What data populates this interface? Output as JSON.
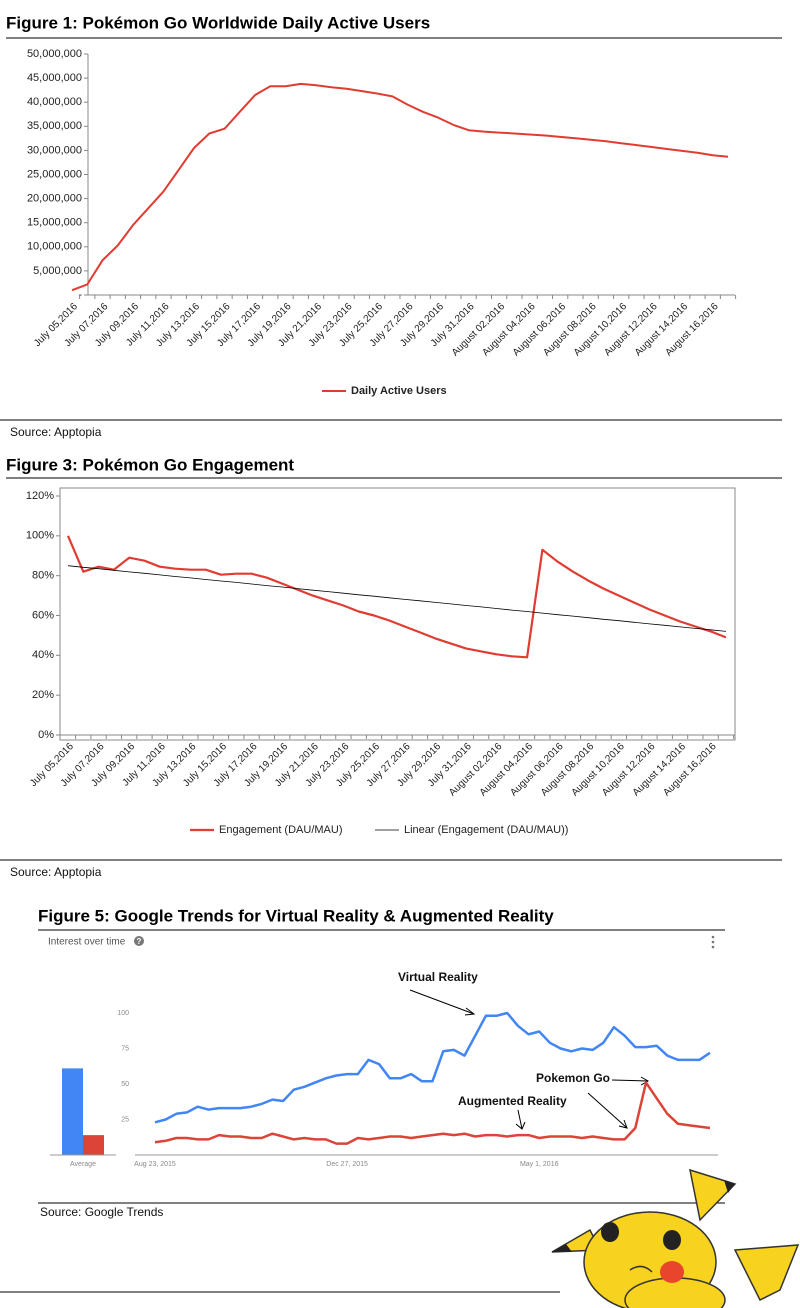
{
  "chart_data": [
    {
      "type": "line",
      "title": "Figure 1: Pokémon Go Worldwide Daily Active Users",
      "categories": [
        "July 05,2016",
        null,
        "July 07,2016",
        null,
        "July 09,2016",
        null,
        "July 11,2016",
        null,
        "July 13,2016",
        null,
        "July 15,2016",
        null,
        "July 17,2016",
        null,
        "July 19,2016",
        null,
        "July 21,2016",
        null,
        "July 23,2016",
        null,
        "July 25,2016",
        null,
        "July 27,2016",
        null,
        "July 29,2016",
        null,
        "July 31,2016",
        null,
        "August 02,2016",
        null,
        "August 04,2016",
        null,
        "August 06,2016",
        null,
        "August 08,2016",
        null,
        "August 10,2016",
        null,
        "August 12,2016",
        null,
        "August 14,2016",
        null,
        "August 16,2016",
        null
      ],
      "series": [
        {
          "name": "Daily Active Users",
          "color": "#e03c31",
          "values": [
            1000000,
            2200000,
            7200000,
            10300000,
            14500000,
            18000000,
            21500000,
            26000000,
            30500000,
            33500000,
            34500000,
            38000000,
            41500000,
            43300000,
            43300000,
            43800000,
            43500000,
            43100000,
            42800000,
            42300000,
            41800000,
            41200000,
            39500000,
            38000000,
            36800000,
            35300000,
            34200000,
            33900000,
            33700000,
            33500000,
            33300000,
            33100000,
            32800000,
            32500000,
            32200000,
            31900000,
            31500000,
            31100000,
            30700000,
            30300000,
            29900000,
            29500000,
            29000000,
            28700000
          ]
        }
      ],
      "ylim": [
        0,
        50000000
      ],
      "yticks": [
        {
          "value": 0,
          "label": "-"
        },
        {
          "value": 5000000,
          "label": "5,000,000"
        },
        {
          "value": 10000000,
          "label": "10,000,000"
        },
        {
          "value": 15000000,
          "label": "15,000,000"
        },
        {
          "value": 20000000,
          "label": "20,000,000"
        },
        {
          "value": 25000000,
          "label": "25,000,000"
        },
        {
          "value": 30000000,
          "label": "30,000,000"
        },
        {
          "value": 35000000,
          "label": "35,000,000"
        },
        {
          "value": 40000000,
          "label": "40,000,000"
        },
        {
          "value": 45000000,
          "label": "45,000,000"
        },
        {
          "value": 50000000,
          "label": "50,000,000"
        }
      ],
      "legend": "bottom",
      "source": "Source: Apptopia"
    },
    {
      "type": "line",
      "title": "Figure 3: Pokémon Go Engagement",
      "categories": [
        "July 05,2016",
        null,
        "July 07,2016",
        null,
        "July 09,2016",
        null,
        "July 11,2016",
        null,
        "July 13,2016",
        null,
        "July 15,2016",
        null,
        "July 17,2016",
        null,
        "July 19,2016",
        null,
        "July 21,2016",
        null,
        "July 23,2016",
        null,
        "July 25,2016",
        null,
        "July 27,2016",
        null,
        "July 29,2016",
        null,
        "July 31,2016",
        null,
        "August 02,2016",
        null,
        "August 04,2016",
        null,
        "August 06,2016",
        null,
        "August 08,2016",
        null,
        "August 10,2016",
        null,
        "August 12,2016",
        null,
        "August 14,2016",
        null,
        "August 16,2016",
        null
      ],
      "series": [
        {
          "name": "Engagement (DAU/MAU)",
          "color": "#e03c31",
          "values": [
            100,
            82,
            84.5,
            83,
            89,
            87.5,
            84.5,
            83.5,
            83,
            83,
            80.5,
            81,
            81,
            79,
            76,
            73,
            70,
            67.5,
            65,
            62,
            60,
            57.5,
            54.5,
            51.5,
            48.5,
            46,
            43.5,
            42,
            40.5,
            39.5,
            39,
            93,
            87,
            82,
            77.5,
            73.5,
            70,
            66.5,
            63,
            60,
            57,
            54.5,
            52,
            49
          ]
        },
        {
          "name": "Linear (Engagement (DAU/MAU))",
          "color": "#000000",
          "values": [
            85,
            84.2,
            83.5,
            82.7,
            81.9,
            81.2,
            80.4,
            79.6,
            78.9,
            78.1,
            77.3,
            76.6,
            75.8,
            75.0,
            74.3,
            73.5,
            72.7,
            72.0,
            71.2,
            70.4,
            69.7,
            68.9,
            68.1,
            67.4,
            66.6,
            65.8,
            65.0,
            64.3,
            63.5,
            62.7,
            62.0,
            61.2,
            60.4,
            59.7,
            58.9,
            58.1,
            57.4,
            56.6,
            55.8,
            55.1,
            54.3,
            53.5,
            52.8,
            52.0
          ]
        }
      ],
      "ylim": [
        0,
        120
      ],
      "yticks": [
        {
          "value": 0,
          "label": "0%"
        },
        {
          "value": 20,
          "label": "20%"
        },
        {
          "value": 40,
          "label": "40%"
        },
        {
          "value": 60,
          "label": "60%"
        },
        {
          "value": 80,
          "label": "80%"
        },
        {
          "value": 100,
          "label": "100%"
        },
        {
          "value": 120,
          "label": "120%"
        }
      ],
      "legend": "bottom",
      "source": "Source: Apptopia"
    },
    {
      "type": "line",
      "title": "Figure 5: Google Trends for Virtual Reality & Augmented Reality",
      "subtitle": "Interest over time",
      "categories": [
        "Aug 23, 2015",
        null,
        null,
        null,
        null,
        null,
        null,
        null,
        null,
        null,
        null,
        null,
        null,
        null,
        null,
        null,
        null,
        null,
        "Dec 27, 2015",
        null,
        null,
        null,
        null,
        null,
        null,
        null,
        null,
        null,
        null,
        null,
        null,
        null,
        null,
        null,
        null,
        null,
        "May 1, 2016",
        null,
        null,
        null,
        null,
        null,
        null,
        null,
        null,
        null,
        null,
        null,
        null,
        null,
        null,
        null,
        null
      ],
      "series": [
        {
          "name": "Virtual Reality",
          "color": "#4285f4",
          "values": [
            23,
            25,
            29,
            30,
            34,
            32,
            33,
            33,
            33,
            34,
            36,
            39,
            38,
            46,
            48,
            51,
            54,
            56,
            57,
            57,
            67,
            64,
            54,
            54,
            57,
            52,
            52,
            73,
            74,
            70,
            84,
            98,
            98,
            100,
            91,
            85,
            87,
            79,
            75,
            73,
            75,
            74,
            79,
            90,
            84,
            76,
            76,
            77,
            70,
            67,
            67,
            67,
            72
          ]
        },
        {
          "name": "Augmented Reality",
          "color": "#db4437",
          "values": [
            9,
            10,
            12,
            12,
            11,
            11,
            14,
            13,
            13,
            12,
            12,
            15,
            13,
            11,
            12,
            11,
            11,
            8,
            8,
            12,
            11,
            12,
            13,
            13,
            12,
            13,
            14,
            15,
            14,
            15,
            13,
            14,
            14,
            13,
            14,
            14,
            12,
            13,
            13,
            13,
            12,
            13,
            12,
            11,
            11,
            19,
            51,
            40,
            29,
            22,
            21,
            20,
            19
          ]
        }
      ],
      "ylim": [
        0,
        100
      ],
      "yticks": [
        25,
        50,
        75,
        100
      ],
      "annotations": [
        "Pokemon Go"
      ],
      "averages": {
        "label": "Average",
        "values": [
          61,
          14
        ]
      },
      "source": "Source: Google Trends"
    }
  ]
}
